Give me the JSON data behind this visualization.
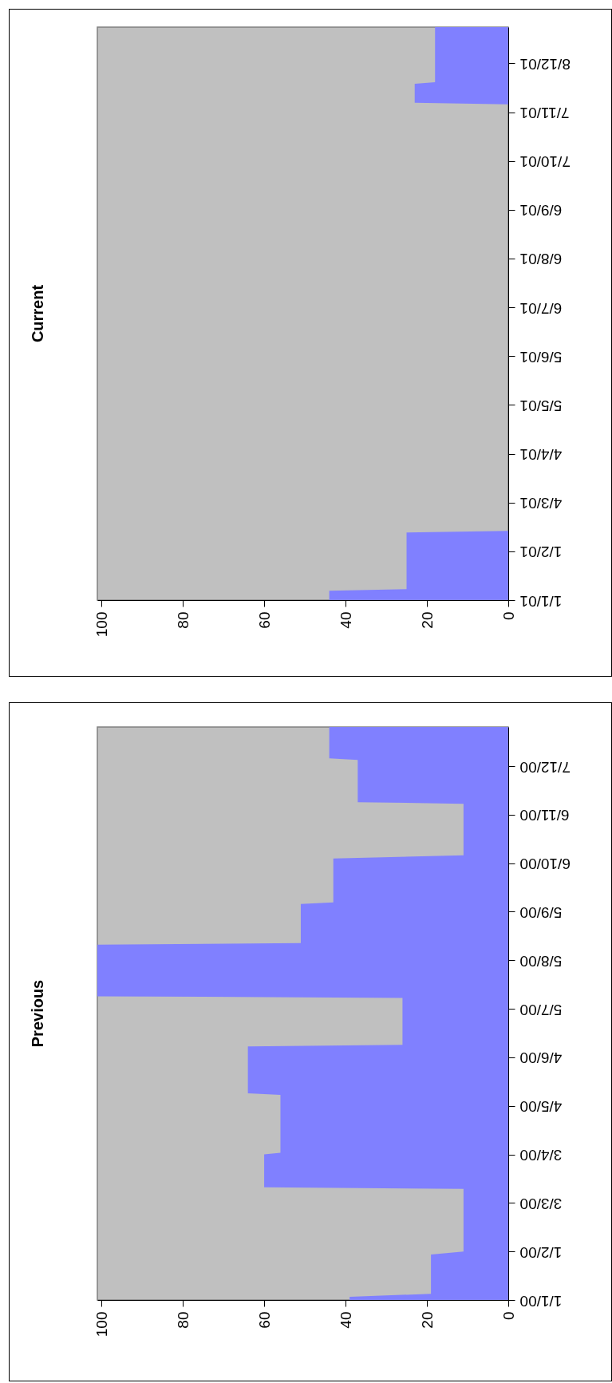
{
  "chart_data": [
    {
      "type": "area",
      "orientation": "horizontal",
      "title": "Previous",
      "color": "#8080ff",
      "x": [
        "2000-01-01",
        "2000-01-03",
        "2000-01-05",
        "2000-01-30",
        "2000-02-01",
        "2000-03-12",
        "2000-03-13",
        "2000-04-03",
        "2000-04-04",
        "2000-05-11",
        "2000-05-12",
        "2000-06-11",
        "2000-06-12",
        "2000-07-12",
        "2000-07-13",
        "2000-08-15",
        "2000-08-16",
        "2000-09-10",
        "2000-09-11",
        "2000-10-09",
        "2000-10-11",
        "2000-11-13",
        "2000-11-14",
        "2000-12-11",
        "2000-12-12",
        "2001-01-01"
      ],
      "values": [
        39,
        39,
        19,
        19,
        11,
        11,
        60,
        60,
        56,
        56,
        64,
        64,
        26,
        26,
        101,
        101,
        51,
        51,
        43,
        43,
        11,
        11,
        37,
        37,
        44,
        44
      ],
      "ylim": [
        "2000-01-01",
        "2001-01-01"
      ],
      "yticks": [
        {
          "value": "2000-01-01",
          "label": "1/1/00"
        },
        {
          "value": "2000-02-01",
          "label": "1/2/00"
        },
        {
          "value": "2000-03-03",
          "label": "3/3/00"
        },
        {
          "value": "2000-04-03",
          "label": "3/4/00"
        },
        {
          "value": "2000-05-04",
          "label": "4/5/00"
        },
        {
          "value": "2000-06-04",
          "label": "4/6/00"
        },
        {
          "value": "2000-07-05",
          "label": "5/7/00"
        },
        {
          "value": "2000-08-05",
          "label": "5/8/00"
        },
        {
          "value": "2000-09-05",
          "label": "5/9/00"
        },
        {
          "value": "2000-10-06",
          "label": "6/10/00"
        },
        {
          "value": "2000-11-06",
          "label": "6/11/00"
        },
        {
          "value": "2000-12-07",
          "label": "7/12/00"
        }
      ],
      "xlim": [
        101,
        0
      ],
      "xticks": [
        100,
        80,
        60,
        40,
        20,
        0
      ]
    },
    {
      "type": "area",
      "orientation": "horizontal",
      "title": "Current",
      "color": "#8080ff",
      "x": [
        "2001-01-01",
        "2001-01-07",
        "2001-01-08",
        "2001-02-13",
        "2001-02-14",
        "2001-11-12",
        "2001-11-13",
        "2001-11-25",
        "2001-11-26",
        "2001-12-31"
      ],
      "values": [
        44,
        44,
        25,
        25,
        0,
        0,
        23,
        23,
        18,
        18
      ],
      "ylim": [
        "2001-01-01",
        "2001-12-31"
      ],
      "yticks": [
        {
          "value": "2001-01-01",
          "label": "1/1/01"
        },
        {
          "value": "2001-02-01",
          "label": "1/2/01"
        },
        {
          "value": "2001-03-04",
          "label": "4/3/01"
        },
        {
          "value": "2001-04-04",
          "label": "4/4/01"
        },
        {
          "value": "2001-05-05",
          "label": "5/5/01"
        },
        {
          "value": "2001-06-05",
          "label": "5/6/01"
        },
        {
          "value": "2001-07-06",
          "label": "6/7/01"
        },
        {
          "value": "2001-08-06",
          "label": "6/8/01"
        },
        {
          "value": "2001-09-06",
          "label": "6/9/01"
        },
        {
          "value": "2001-10-07",
          "label": "7/10/01"
        },
        {
          "value": "2001-11-07",
          "label": "7/11/01"
        },
        {
          "value": "2001-12-08",
          "label": "8/12/01"
        }
      ],
      "xlim": [
        101,
        0
      ],
      "xticks": [
        100,
        80,
        60,
        40,
        20,
        0
      ]
    }
  ]
}
